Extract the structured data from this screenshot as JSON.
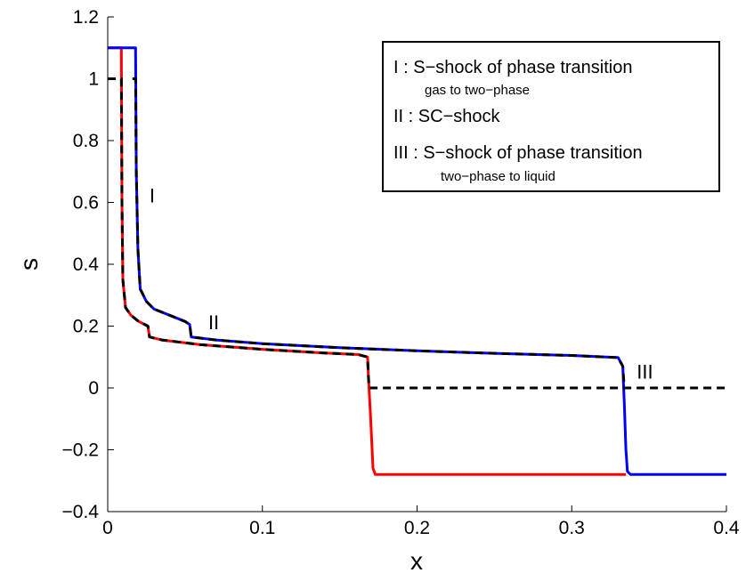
{
  "chart_data": {
    "type": "line",
    "title": "",
    "xlabel": "x",
    "ylabel": "s",
    "xlim": [
      0,
      0.4
    ],
    "ylim": [
      -0.4,
      1.2
    ],
    "grid": false,
    "x_ticks": [
      "0",
      "0.1",
      "0.2",
      "0.3",
      "0.4"
    ],
    "y_ticks": [
      "1.2",
      "1",
      "0.8",
      "0.6",
      "0.4",
      "0.2",
      "0",
      "−0.2",
      "−0.4"
    ],
    "series": [
      {
        "color": "#ff0000",
        "style": "solid",
        "points": [
          [
            0.0,
            1.1
          ],
          [
            0.0088,
            1.1
          ],
          [
            0.0092,
            0.6
          ],
          [
            0.0098,
            0.35
          ],
          [
            0.0115,
            0.26
          ],
          [
            0.015,
            0.235
          ],
          [
            0.02,
            0.215
          ],
          [
            0.026,
            0.2
          ],
          [
            0.027,
            0.165
          ],
          [
            0.035,
            0.155
          ],
          [
            0.06,
            0.14
          ],
          [
            0.1,
            0.125
          ],
          [
            0.14,
            0.113
          ],
          [
            0.162,
            0.108
          ],
          [
            0.168,
            0.1
          ],
          [
            0.1685,
            0.04
          ],
          [
            0.17,
            -0.1
          ],
          [
            0.1715,
            -0.26
          ],
          [
            0.173,
            -0.28
          ],
          [
            0.2,
            -0.28
          ],
          [
            0.335,
            -0.28
          ]
        ]
      },
      {
        "color": "#0000ff",
        "style": "solid",
        "points": [
          [
            0.0,
            1.1
          ],
          [
            0.018,
            1.1
          ],
          [
            0.0185,
            0.7
          ],
          [
            0.0195,
            0.45
          ],
          [
            0.021,
            0.32
          ],
          [
            0.025,
            0.28
          ],
          [
            0.03,
            0.255
          ],
          [
            0.04,
            0.235
          ],
          [
            0.05,
            0.215
          ],
          [
            0.053,
            0.205
          ],
          [
            0.054,
            0.165
          ],
          [
            0.07,
            0.155
          ],
          [
            0.1,
            0.143
          ],
          [
            0.15,
            0.13
          ],
          [
            0.2,
            0.12
          ],
          [
            0.25,
            0.112
          ],
          [
            0.3,
            0.105
          ],
          [
            0.33,
            0.098
          ],
          [
            0.333,
            0.07
          ],
          [
            0.334,
            -0.05
          ],
          [
            0.335,
            -0.2
          ],
          [
            0.336,
            -0.27
          ],
          [
            0.338,
            -0.28
          ],
          [
            0.4,
            -0.28
          ]
        ]
      },
      {
        "color": "#000000",
        "style": "dashed",
        "points": [
          [
            0.0,
            1.0
          ],
          [
            0.0088,
            1.0
          ],
          [
            0.0092,
            0.6
          ],
          [
            0.0098,
            0.35
          ],
          [
            0.0115,
            0.26
          ],
          [
            0.015,
            0.235
          ],
          [
            0.02,
            0.215
          ],
          [
            0.026,
            0.2
          ],
          [
            0.027,
            0.165
          ],
          [
            0.035,
            0.155
          ],
          [
            0.06,
            0.14
          ],
          [
            0.1,
            0.125
          ],
          [
            0.14,
            0.113
          ],
          [
            0.162,
            0.108
          ],
          [
            0.168,
            0.1
          ],
          [
            0.1685,
            0.04
          ],
          [
            0.169,
            0.0
          ],
          [
            0.4,
            0.0
          ]
        ]
      },
      {
        "color": "#000000",
        "style": "dashed",
        "points": [
          [
            0.016,
            1.0
          ],
          [
            0.018,
            1.0
          ],
          [
            0.0185,
            0.7
          ],
          [
            0.0195,
            0.45
          ],
          [
            0.021,
            0.32
          ],
          [
            0.025,
            0.28
          ],
          [
            0.03,
            0.255
          ],
          [
            0.04,
            0.235
          ],
          [
            0.05,
            0.215
          ],
          [
            0.053,
            0.205
          ],
          [
            0.054,
            0.165
          ],
          [
            0.07,
            0.155
          ],
          [
            0.1,
            0.143
          ],
          [
            0.15,
            0.13
          ],
          [
            0.2,
            0.12
          ],
          [
            0.25,
            0.112
          ],
          [
            0.3,
            0.105
          ],
          [
            0.33,
            0.098
          ],
          [
            0.333,
            0.07
          ],
          [
            0.334,
            0.0
          ]
        ]
      }
    ],
    "annotations": [
      {
        "text": "I",
        "x": 0.027,
        "y": 0.6
      },
      {
        "text": "II",
        "x": 0.065,
        "y": 0.19
      },
      {
        "text": "III",
        "x": 0.342,
        "y": 0.03
      }
    ],
    "legend": {
      "placement": "top-right",
      "entries": [
        {
          "main": "I : S−shock of phase transition",
          "sub": "gas to two−phase"
        },
        {
          "main": "II : SC−shock",
          "sub": ""
        },
        {
          "main": "III : S−shock of phase transition",
          "sub": "two−phase to liquid"
        }
      ]
    }
  }
}
